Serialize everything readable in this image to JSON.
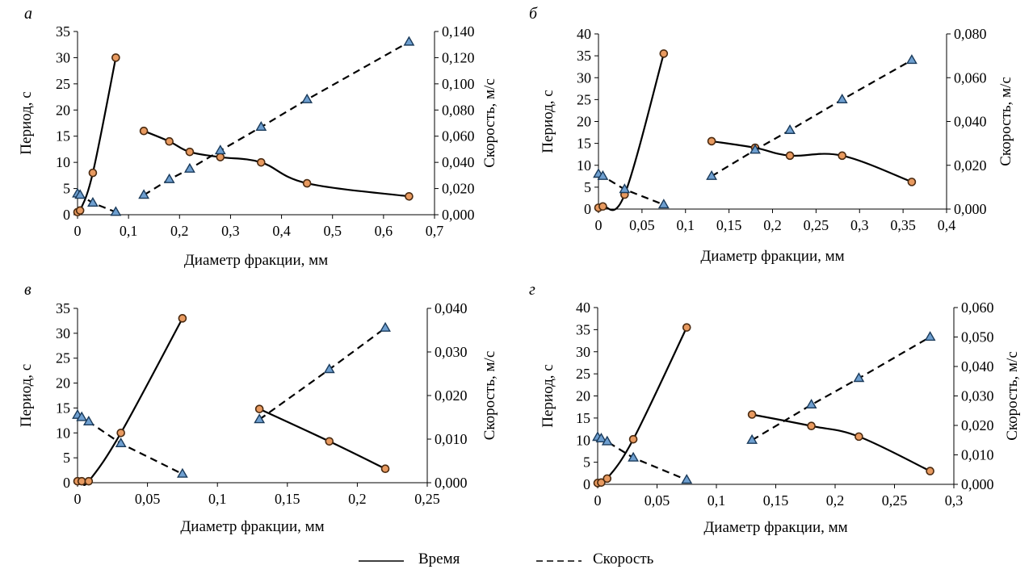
{
  "legend": {
    "time_label": "Время",
    "speed_label": "Скорость"
  },
  "colors": {
    "axis": "#000000",
    "time_marker_fill": "#e89a60",
    "time_marker_stroke": "#4a2a10",
    "speed_marker_fill": "#6e9fd0",
    "speed_marker_stroke": "#1a3a5a"
  },
  "chart_data": [
    {
      "panel": "а",
      "type": "line",
      "xlabel": "Диаметр фракции, мм",
      "ylabel": "Период, с",
      "y2label": "Скорость, м/с",
      "xlim": [
        0,
        0.7
      ],
      "xticks": [
        "0",
        "0,1",
        "0,2",
        "0,3",
        "0,4",
        "0,5",
        "0,6",
        "0,7"
      ],
      "ylim": [
        0,
        35
      ],
      "yticks": [
        "0",
        "5",
        "10",
        "15",
        "20",
        "25",
        "30",
        "35"
      ],
      "y2lim": [
        0,
        0.14
      ],
      "y2ticks": [
        "0,000",
        "0,020",
        "0,040",
        "0,060",
        "0,080",
        "0,100",
        "0,120",
        "0,140"
      ],
      "series": [
        {
          "name": "Время",
          "axis": "left",
          "style": "solid",
          "marker": "circle",
          "segments": [
            [
              [
                0,
                0.5
              ],
              [
                0.005,
                0.8
              ],
              [
                0.03,
                8
              ],
              [
                0.075,
                30
              ]
            ],
            [
              [
                0.13,
                16
              ],
              [
                0.18,
                14
              ],
              [
                0.22,
                12
              ],
              [
                0.28,
                11
              ],
              [
                0.36,
                10
              ],
              [
                0.45,
                6
              ],
              [
                0.65,
                3.5
              ]
            ]
          ]
        },
        {
          "name": "Скорость",
          "axis": "right",
          "style": "dashed",
          "marker": "triangle",
          "segments": [
            [
              [
                0,
                0.016
              ],
              [
                0.005,
                0.015
              ],
              [
                0.03,
                0.009
              ],
              [
                0.075,
                0.002
              ]
            ],
            [
              [
                0.13,
                0.015
              ],
              [
                0.18,
                0.027
              ],
              [
                0.22,
                0.035
              ],
              [
                0.28,
                0.049
              ],
              [
                0.36,
                0.067
              ],
              [
                0.45,
                0.088
              ],
              [
                0.65,
                0.132
              ]
            ]
          ]
        }
      ]
    },
    {
      "panel": "б",
      "type": "line",
      "xlabel": "Диаметр фракции, мм",
      "ylabel": "Период, с",
      "y2label": "Скорость, м/с",
      "xlim": [
        0,
        0.4
      ],
      "xticks": [
        "0",
        "0,05",
        "0,1",
        "0,15",
        "0,2",
        "0,25",
        "0,3",
        "0,35",
        "0,4"
      ],
      "ylim": [
        0,
        40
      ],
      "yticks": [
        "0",
        "5",
        "10",
        "15",
        "20",
        "25",
        "30",
        "35",
        "40"
      ],
      "y2lim": [
        0,
        0.08
      ],
      "y2ticks": [
        "0,000",
        "0,020",
        "0,040",
        "0,060",
        "0,080"
      ],
      "series": [
        {
          "name": "Время",
          "axis": "left",
          "style": "solid",
          "marker": "circle",
          "segments": [
            [
              [
                0,
                0.3
              ],
              [
                0.005,
                0.6
              ],
              [
                0.03,
                3.3
              ],
              [
                0.075,
                35.5
              ]
            ],
            [
              [
                0.13,
                15.5
              ],
              [
                0.18,
                14
              ],
              [
                0.22,
                12.2
              ],
              [
                0.28,
                12.2
              ],
              [
                0.36,
                6.2
              ]
            ]
          ]
        },
        {
          "name": "Скорость",
          "axis": "right",
          "style": "dashed",
          "marker": "triangle",
          "segments": [
            [
              [
                0,
                0.016
              ],
              [
                0.005,
                0.015
              ],
              [
                0.03,
                0.009
              ],
              [
                0.075,
                0.002
              ]
            ],
            [
              [
                0.13,
                0.015
              ],
              [
                0.18,
                0.027
              ],
              [
                0.22,
                0.036
              ],
              [
                0.28,
                0.05
              ],
              [
                0.36,
                0.068
              ]
            ]
          ]
        }
      ]
    },
    {
      "panel": "в",
      "type": "line",
      "xlabel": "Диаметр фракции, мм",
      "ylabel": "Период, с",
      "y2label": "Скорость, м/с",
      "xlim": [
        0,
        0.25
      ],
      "xticks": [
        "0",
        "0,05",
        "0,1",
        "0,15",
        "0,2",
        "0,25"
      ],
      "ylim": [
        0,
        35
      ],
      "yticks": [
        "0",
        "5",
        "10",
        "15",
        "20",
        "25",
        "30",
        "35"
      ],
      "y2lim": [
        0,
        0.04
      ],
      "y2ticks": [
        "0,000",
        "0,010",
        "0,020",
        "0,030",
        "0,040"
      ],
      "series": [
        {
          "name": "Время",
          "axis": "left",
          "style": "solid",
          "marker": "circle",
          "segments": [
            [
              [
                0,
                0.3
              ],
              [
                0.003,
                0.3
              ],
              [
                0.008,
                0.3
              ],
              [
                0.031,
                10
              ],
              [
                0.075,
                33
              ]
            ],
            [
              [
                0.13,
                14.8
              ],
              [
                0.18,
                8.3
              ],
              [
                0.22,
                2.8
              ]
            ]
          ]
        },
        {
          "name": "Скорость",
          "axis": "right",
          "style": "dashed",
          "marker": "triangle",
          "segments": [
            [
              [
                0,
                0.0155
              ],
              [
                0.003,
                0.015
              ],
              [
                0.008,
                0.014
              ],
              [
                0.031,
                0.009
              ],
              [
                0.075,
                0.002
              ]
            ],
            [
              [
                0.13,
                0.0145
              ],
              [
                0.18,
                0.026
              ],
              [
                0.22,
                0.0355
              ]
            ]
          ]
        }
      ]
    },
    {
      "panel": "г",
      "type": "line",
      "xlabel": "Диаметр фракции, мм",
      "ylabel": "Период, с",
      "y2label": "Скорость, м/с",
      "xlim": [
        0,
        0.3
      ],
      "xticks": [
        "0",
        "0,05",
        "0,1",
        "0,15",
        "0,2",
        "0,25",
        "0,3"
      ],
      "ylim": [
        0,
        40
      ],
      "yticks": [
        "0",
        "5",
        "10",
        "15",
        "20",
        "25",
        "30",
        "35",
        "40"
      ],
      "y2lim": [
        0,
        0.06
      ],
      "y2ticks": [
        "0,000",
        "0,010",
        "0,020",
        "0,030",
        "0,040",
        "0,050",
        "0,060"
      ],
      "series": [
        {
          "name": "Время",
          "axis": "left",
          "style": "solid",
          "marker": "circle",
          "segments": [
            [
              [
                0,
                0.3
              ],
              [
                0.003,
                0.4
              ],
              [
                0.008,
                1.3
              ],
              [
                0.03,
                10.2
              ],
              [
                0.075,
                35.5
              ]
            ],
            [
              [
                0.13,
                15.8
              ],
              [
                0.18,
                13.2
              ],
              [
                0.22,
                10.8
              ],
              [
                0.28,
                3
              ]
            ]
          ]
        },
        {
          "name": "Скорость",
          "axis": "right",
          "style": "dashed",
          "marker": "triangle",
          "segments": [
            [
              [
                0,
                0.016
              ],
              [
                0.003,
                0.0155
              ],
              [
                0.008,
                0.0145
              ],
              [
                0.03,
                0.009
              ],
              [
                0.075,
                0.0015
              ]
            ],
            [
              [
                0.13,
                0.015
              ],
              [
                0.18,
                0.027
              ],
              [
                0.22,
                0.036
              ],
              [
                0.28,
                0.05
              ]
            ]
          ]
        }
      ]
    }
  ]
}
